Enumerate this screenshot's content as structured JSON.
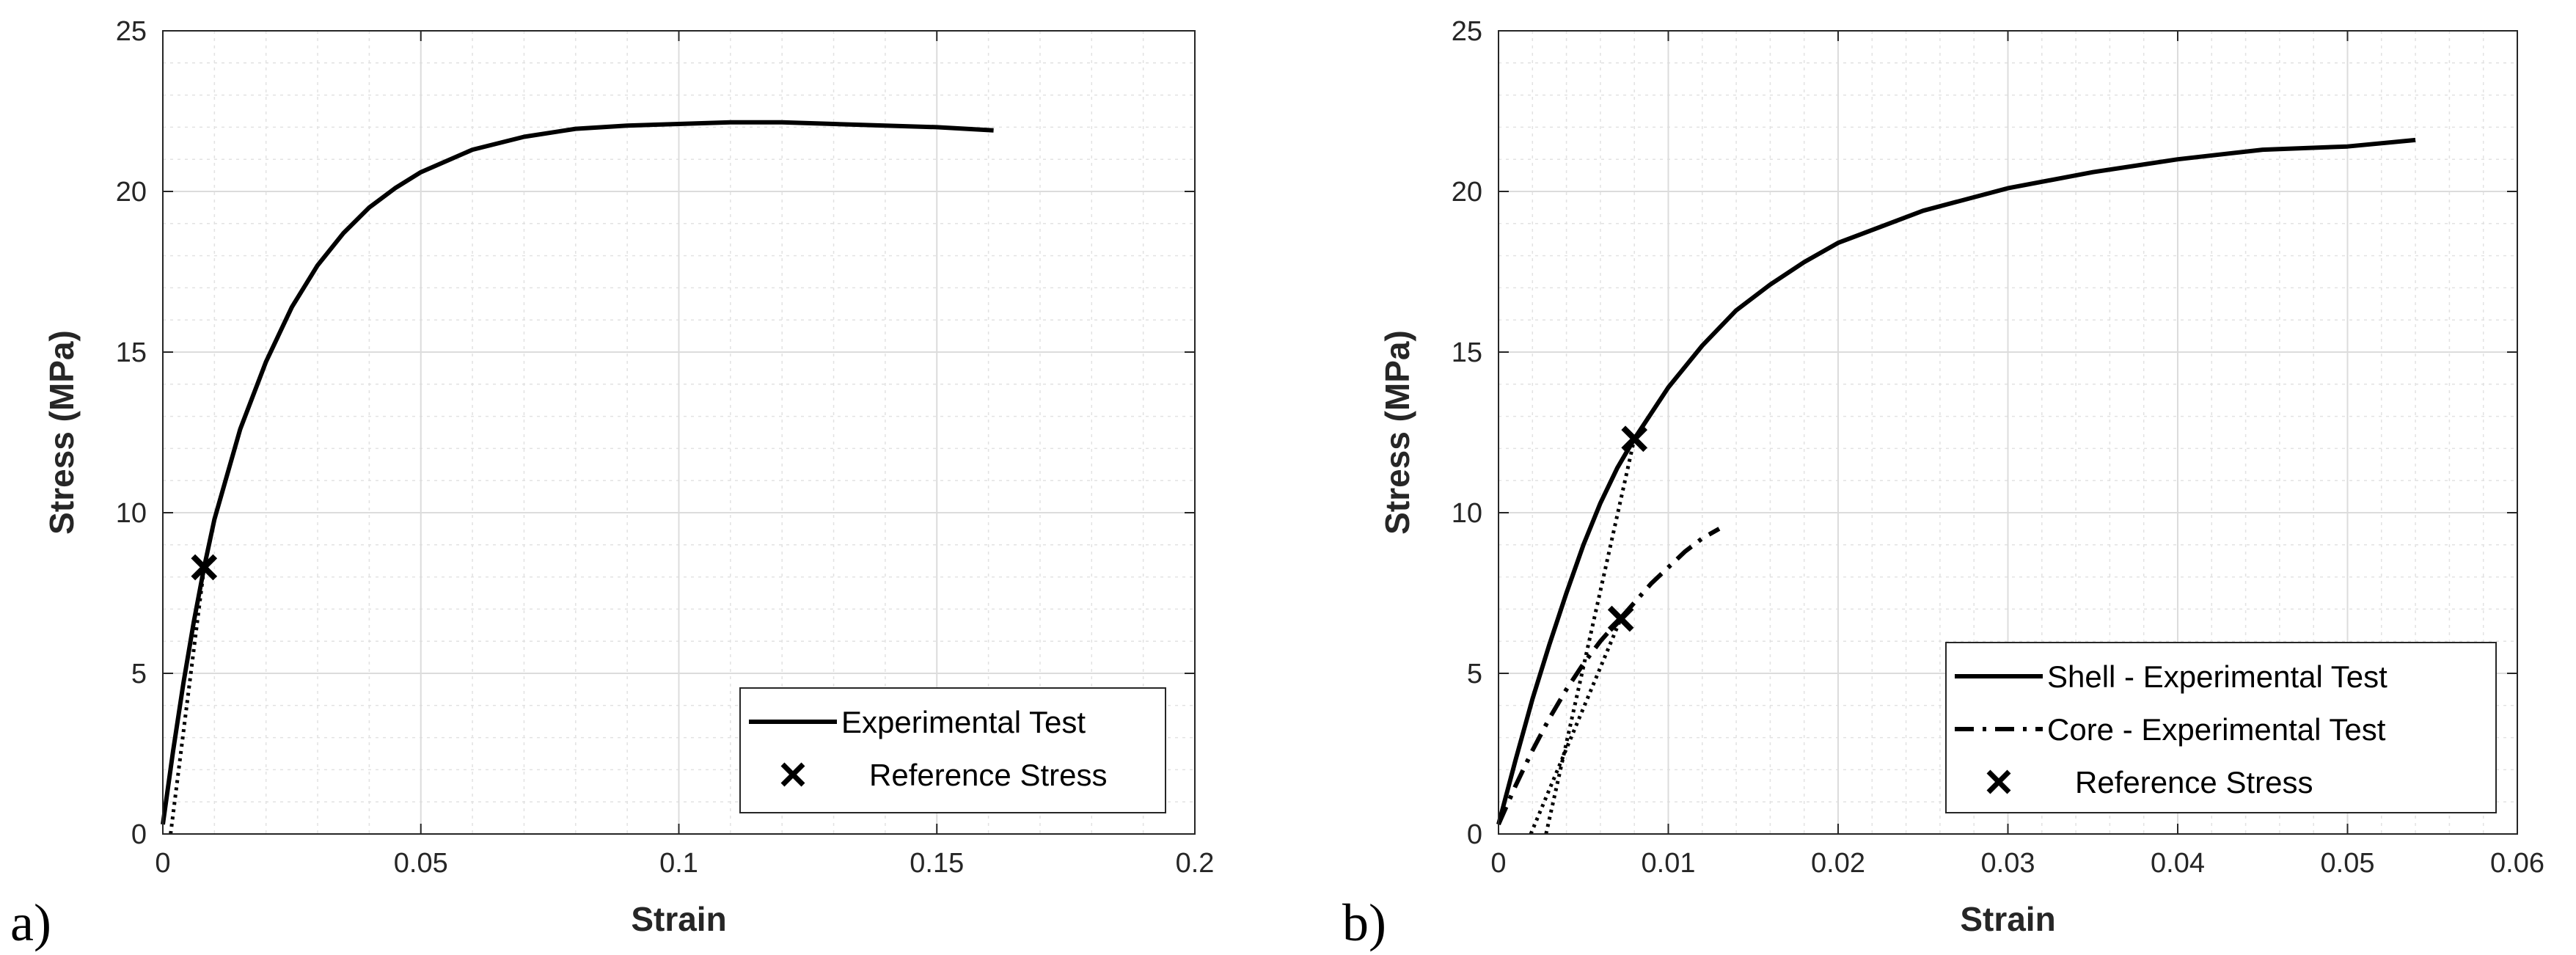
{
  "chart_data": [
    {
      "type": "line",
      "panel_label": "a)",
      "title": "",
      "xlabel": "Strain",
      "ylabel": "Stress (MPa)",
      "xlim": [
        0,
        0.2
      ],
      "ylim": [
        0,
        25
      ],
      "xticks": [
        0,
        0.05,
        0.1,
        0.15,
        0.2
      ],
      "xtick_labels": [
        "0",
        "0.05",
        "0.1",
        "0.15",
        "0.2"
      ],
      "yticks": [
        0,
        5,
        10,
        15,
        20,
        25
      ],
      "ytick_labels": [
        "0",
        "5",
        "10",
        "15",
        "20",
        "25"
      ],
      "grid": true,
      "legend_position": "bottom-right",
      "legend": [
        {
          "label": "Experimental Test",
          "style": "solid"
        },
        {
          "label": "Reference Stress",
          "style": "marker-x"
        }
      ],
      "series": [
        {
          "name": "Experimental Test",
          "style": "solid",
          "x": [
            0,
            0.002,
            0.004,
            0.006,
            0.008,
            0.01,
            0.015,
            0.02,
            0.025,
            0.03,
            0.035,
            0.04,
            0.045,
            0.05,
            0.06,
            0.07,
            0.08,
            0.09,
            0.1,
            0.11,
            0.12,
            0.13,
            0.14,
            0.15,
            0.161
          ],
          "y": [
            0.3,
            2.6,
            4.7,
            6.6,
            8.3,
            9.8,
            12.6,
            14.7,
            16.4,
            17.7,
            18.7,
            19.5,
            20.1,
            20.6,
            21.3,
            21.7,
            21.95,
            22.05,
            22.1,
            22.15,
            22.15,
            22.1,
            22.05,
            22.0,
            21.9
          ]
        },
        {
          "name": "Reference Stress tangent",
          "style": "dotted",
          "x": [
            0.0015,
            0.008
          ],
          "y": [
            0,
            8.3
          ]
        }
      ],
      "markers": [
        {
          "name": "Reference Stress",
          "x": 0.008,
          "y": 8.3
        }
      ]
    },
    {
      "type": "line",
      "panel_label": "b)",
      "title": "",
      "xlabel": "Strain",
      "ylabel": "Stress (MPa)",
      "xlim": [
        0,
        0.06
      ],
      "ylim": [
        0,
        25
      ],
      "xticks": [
        0,
        0.01,
        0.02,
        0.03,
        0.04,
        0.05,
        0.06
      ],
      "xtick_labels": [
        "0",
        "0.01",
        "0.02",
        "0.03",
        "0.04",
        "0.05",
        "0.06"
      ],
      "yticks": [
        0,
        5,
        10,
        15,
        20,
        25
      ],
      "ytick_labels": [
        "0",
        "5",
        "10",
        "15",
        "20",
        "25"
      ],
      "grid": true,
      "legend_position": "bottom-right",
      "legend": [
        {
          "label": "Shell - Experimental Test",
          "style": "solid"
        },
        {
          "label": "Core - Experimental Test",
          "style": "dashdot"
        },
        {
          "label": "Reference Stress",
          "style": "marker-x"
        }
      ],
      "series": [
        {
          "name": "Shell - Experimental Test",
          "style": "solid",
          "x": [
            0,
            0.001,
            0.002,
            0.003,
            0.004,
            0.005,
            0.006,
            0.007,
            0.008,
            0.01,
            0.012,
            0.014,
            0.016,
            0.018,
            0.02,
            0.025,
            0.03,
            0.035,
            0.04,
            0.045,
            0.05,
            0.054
          ],
          "y": [
            0.3,
            2.3,
            4.2,
            5.9,
            7.5,
            9.0,
            10.3,
            11.4,
            12.3,
            13.9,
            15.2,
            16.3,
            17.1,
            17.8,
            18.4,
            19.4,
            20.1,
            20.6,
            21.0,
            21.3,
            21.4,
            21.6
          ]
        },
        {
          "name": "Core - Experimental Test",
          "style": "dashdot",
          "x": [
            0,
            0.001,
            0.002,
            0.003,
            0.004,
            0.005,
            0.006,
            0.007,
            0.008,
            0.009,
            0.01,
            0.011,
            0.012,
            0.013
          ],
          "y": [
            0.3,
            1.5,
            2.6,
            3.6,
            4.5,
            5.3,
            6.0,
            6.6,
            7.2,
            7.8,
            8.3,
            8.8,
            9.2,
            9.5
          ]
        },
        {
          "name": "Shell reference tangent",
          "style": "dotted",
          "x": [
            0.0028,
            0.008
          ],
          "y": [
            0,
            12.3
          ]
        },
        {
          "name": "Core reference tangent",
          "style": "dotted",
          "x": [
            0.0019,
            0.0072
          ],
          "y": [
            0,
            6.7
          ]
        }
      ],
      "markers": [
        {
          "name": "Reference Stress (Shell)",
          "x": 0.008,
          "y": 12.3
        },
        {
          "name": "Reference Stress (Core)",
          "x": 0.0072,
          "y": 6.7
        }
      ]
    }
  ]
}
